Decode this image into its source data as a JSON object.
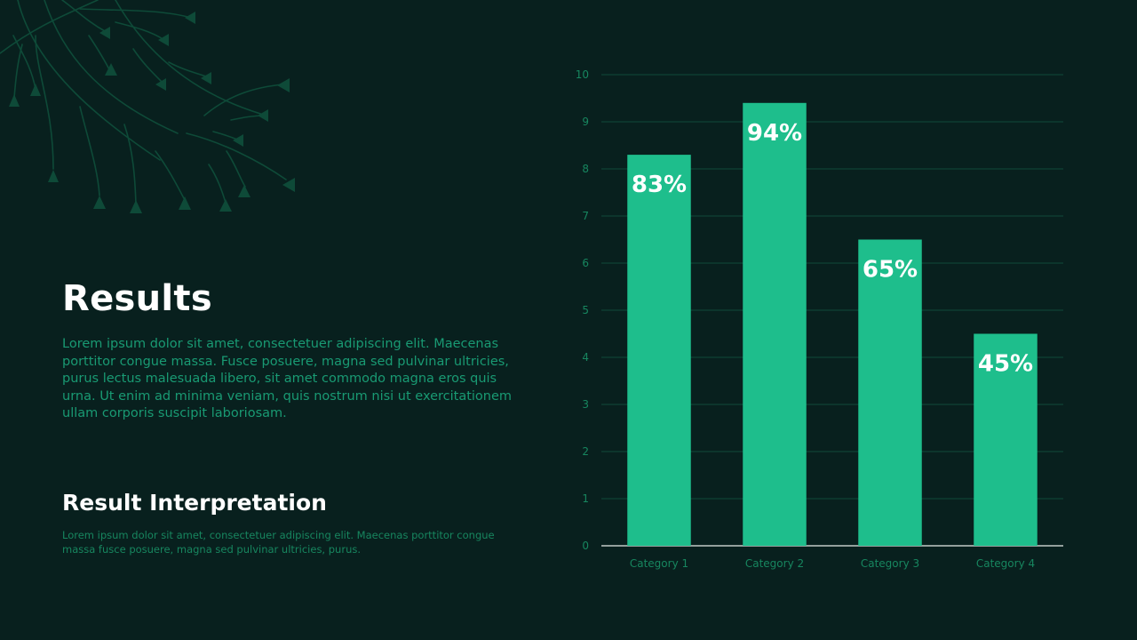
{
  "slide": {
    "title": "Results",
    "body": "Lorem ipsum dolor sit amet, consectetuer adipiscing elit. Maecenas porttitor congue massa. Fusce posuere, magna sed pulvinar ultricies, purus lectus malesuada libero, sit amet commodo magna eros quis urna. Ut enim ad minima veniam, quis nostrum nisi ut exercitationem ullam corporis suscipit laboriosam.",
    "subtitle": "Result Interpretation",
    "small_text": "Lorem ipsum dolor sit amet, consectetuer adipiscing elit. Maecenas porttitor congue massa fusce posuere, magna sed pulvinar ultricies, purus."
  },
  "colors": {
    "background": "#08201e",
    "bar": "#1ebe8c",
    "gridline": "#0f4a3a",
    "axis_line": "#e8ece9",
    "tick_label": "#17865f",
    "data_label": "#ffffff",
    "decor": "#0e4a38"
  },
  "decor": {
    "icon": "plant-branch-icon"
  },
  "chart_data": {
    "type": "bar",
    "categories": [
      "Category 1",
      "Category 2",
      "Category 3",
      "Category 4"
    ],
    "values": [
      8.3,
      9.4,
      6.5,
      4.5
    ],
    "data_labels": [
      "83%",
      "94%",
      "65%",
      "45%"
    ],
    "ylim": [
      0,
      10
    ],
    "yticks": [
      0,
      1,
      2,
      3,
      4,
      5,
      6,
      7,
      8,
      9,
      10
    ],
    "grid": true,
    "legend": "none",
    "title": "",
    "xlabel": "",
    "ylabel": ""
  }
}
